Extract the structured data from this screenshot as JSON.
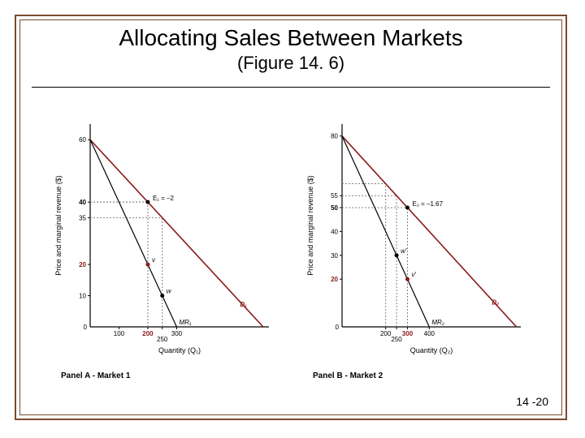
{
  "slide": {
    "title": "Allocating Sales Between Markets",
    "subtitle": "(Figure 14. 6)",
    "page_number": "14 -20",
    "border_color": "#7a4a2b",
    "background": "#ffffff"
  },
  "panelA": {
    "label": "Panel A - Market 1",
    "ylabel": "Price and marginal revenue ($)",
    "xlabel": "Quantity (Q₁)",
    "type": "line",
    "y_intercept_top": 60,
    "x_ticks": [
      0,
      100,
      200,
      250,
      300
    ],
    "x_tick_styles": {
      "0": "plain",
      "100": "plain",
      "200": "red",
      "250": "plain",
      "300": "plain"
    },
    "y_ticks": [
      0,
      10,
      20,
      35,
      40,
      60
    ],
    "y_tick_styles": {
      "0": "plain",
      "10": "plain",
      "20": "red",
      "35": "plain",
      "40": "bold",
      "60": "plain"
    },
    "xlim": [
      0,
      620
    ],
    "ylim": [
      0,
      65
    ],
    "demand_series": {
      "x1": 0,
      "y1": 60,
      "x2": 600,
      "y2": 0,
      "color": "#8b1a1a",
      "label": "D₁"
    },
    "mr_series": {
      "x1": 0,
      "y1": 60,
      "x2": 300,
      "y2": 0,
      "color": "#000000",
      "label": "MR₁"
    },
    "elasticity_point": {
      "q": 200,
      "p": 40,
      "label": "E₁ = –2"
    },
    "points": [
      {
        "name": "v",
        "q": 200,
        "p": 20,
        "color": "#8b1a1a"
      },
      {
        "name": "w",
        "q": 250,
        "p": 10,
        "color": "#000000"
      }
    ],
    "projection_q": [
      200,
      250
    ],
    "line_width": 1.6
  },
  "panelB": {
    "label": "Panel B - Market 2",
    "ylabel": "Price and marginal revenue ($)",
    "xlabel": "Quantity (Q₂)",
    "type": "line",
    "y_intercept_top": 80,
    "x_ticks": [
      0,
      200,
      250,
      300,
      400
    ],
    "x_tick_styles": {
      "0": "plain",
      "200": "plain",
      "250": "plain",
      "300": "red",
      "400": "plain"
    },
    "y_ticks": [
      0,
      20,
      30,
      40,
      50,
      55,
      80
    ],
    "y_tick_styles": {
      "0": "plain",
      "20": "red",
      "30": "plain",
      "40": "plain",
      "50": "bold",
      "55": "plain",
      "80": "plain"
    },
    "xlim": [
      0,
      820
    ],
    "ylim": [
      0,
      85
    ],
    "demand_series": {
      "x1": 0,
      "y1": 80,
      "x2": 800,
      "y2": 0,
      "color": "#8b1a1a",
      "label": "D₂"
    },
    "mr_series": {
      "x1": 0,
      "y1": 80,
      "x2": 400,
      "y2": 0,
      "color": "#000000",
      "label": "MR₂"
    },
    "elasticity_point": {
      "q": 300,
      "p": 50,
      "label": "E₂ = –1.67"
    },
    "points": [
      {
        "name": "w′",
        "q": 250,
        "p": 30,
        "color": "#000000"
      },
      {
        "name": "v′",
        "q": 300,
        "p": 20,
        "color": "#8b1a1a"
      }
    ],
    "projection_q": [
      200,
      250,
      300
    ],
    "line_width": 1.6
  }
}
